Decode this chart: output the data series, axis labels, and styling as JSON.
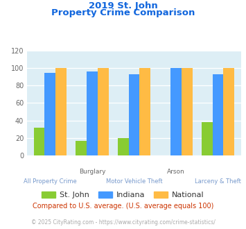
{
  "title_line1": "2019 St. John",
  "title_line2": "Property Crime Comparison",
  "categories": [
    "All Property Crime",
    "Burglary",
    "Motor Vehicle Theft",
    "Arson",
    "Larceny & Theft"
  ],
  "top_labels": [
    "",
    "Burglary",
    "",
    "Arson",
    ""
  ],
  "bottom_labels": [
    "All Property Crime",
    "",
    "Motor Vehicle Theft",
    "",
    "Larceny & Theft"
  ],
  "st_john": [
    32,
    17,
    20,
    0,
    38
  ],
  "indiana": [
    94,
    96,
    93,
    100,
    93
  ],
  "national": [
    100,
    100,
    100,
    100,
    100
  ],
  "colors": {
    "st_john": "#88cc33",
    "indiana": "#4499ff",
    "national": "#ffbb44"
  },
  "ylim": [
    0,
    120
  ],
  "yticks": [
    0,
    20,
    40,
    60,
    80,
    100,
    120
  ],
  "title_color": "#1166dd",
  "bg_color": "#ddeef5",
  "legend_labels": [
    "St. John",
    "Indiana",
    "National"
  ],
  "footnote1": "Compared to U.S. average. (U.S. average equals 100)",
  "footnote2": "© 2025 CityRating.com - https://www.cityrating.com/crime-statistics/",
  "footnote1_color": "#cc3300",
  "footnote2_color": "#aaaaaa",
  "footnote2_url_color": "#4499ff"
}
